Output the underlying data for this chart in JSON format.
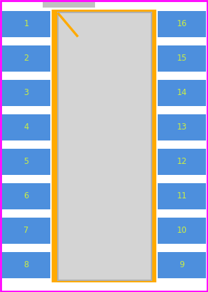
{
  "bg_color": "#ffffff",
  "pkg_body_fill": "#d4d4d4",
  "pkg_body_edge": "#b0b0b0",
  "pkg_outline_color": "#ffaa00",
  "pad_color": "#4d8fdd",
  "pad_text_color": "#ccee44",
  "pin1_marker_color": "#ffaa00",
  "silk_color": "#c0c0c0",
  "magenta": "#ff00ff",
  "n_pins_per_side": 8,
  "left_pins": [
    1,
    2,
    3,
    4,
    5,
    6,
    7,
    8
  ],
  "right_pins": [
    16,
    15,
    14,
    13,
    12,
    11,
    10,
    9
  ],
  "font_size": 8.5
}
